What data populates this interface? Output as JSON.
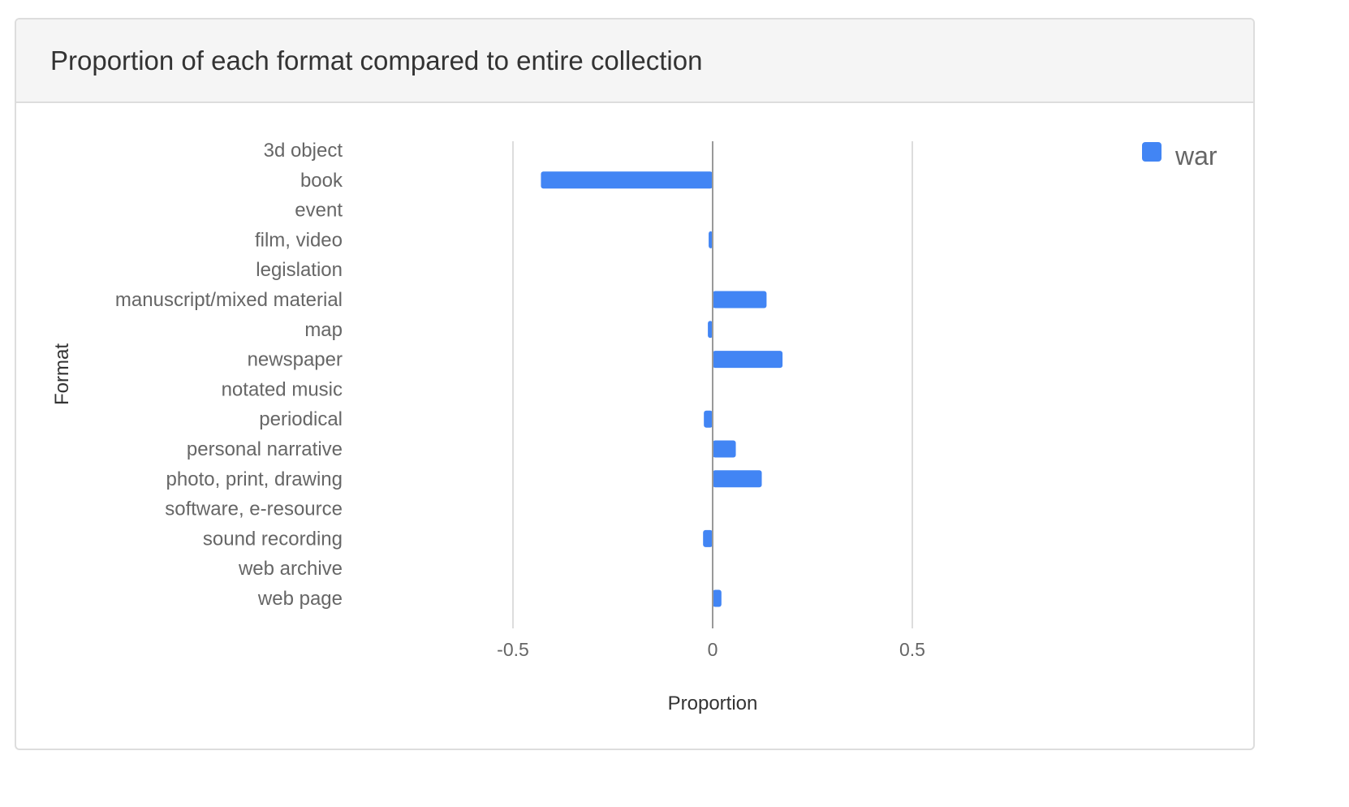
{
  "panel": {
    "title": "Proportion of each format compared to entire collection"
  },
  "colors": {
    "bar": "#4285f4",
    "grid": "#dddddd",
    "zero_line": "#999999",
    "label_text": "#666666",
    "axis_title_text": "#333333",
    "heading_bg": "#f5f5f5",
    "border": "#dddddd"
  },
  "chart_data": {
    "type": "bar",
    "orientation": "horizontal",
    "title": "Proportion of each format compared to entire collection",
    "xlabel": "Proportion",
    "ylabel": "Format",
    "xlim": [
      -1,
      1
    ],
    "xticks": [
      -0.5,
      0,
      0.5
    ],
    "xtick_labels": [
      "-0.5",
      "0",
      "0.5"
    ],
    "grid": true,
    "legend_position": "top-right",
    "categories": [
      "3d object",
      "book",
      "event",
      "film, video",
      "legislation",
      "manuscript/mixed material",
      "map",
      "newspaper",
      "notated music",
      "periodical",
      "personal narrative",
      "photo, print, drawing",
      "software, e-resource",
      "sound recording",
      "web archive",
      "web page"
    ],
    "series": [
      {
        "name": "war",
        "values": [
          0,
          -0.43,
          0,
          -0.01,
          0.002,
          0.135,
          -0.012,
          0.175,
          0.001,
          -0.022,
          0.058,
          0.123,
          0,
          -0.024,
          0.001,
          0.022
        ]
      }
    ]
  }
}
